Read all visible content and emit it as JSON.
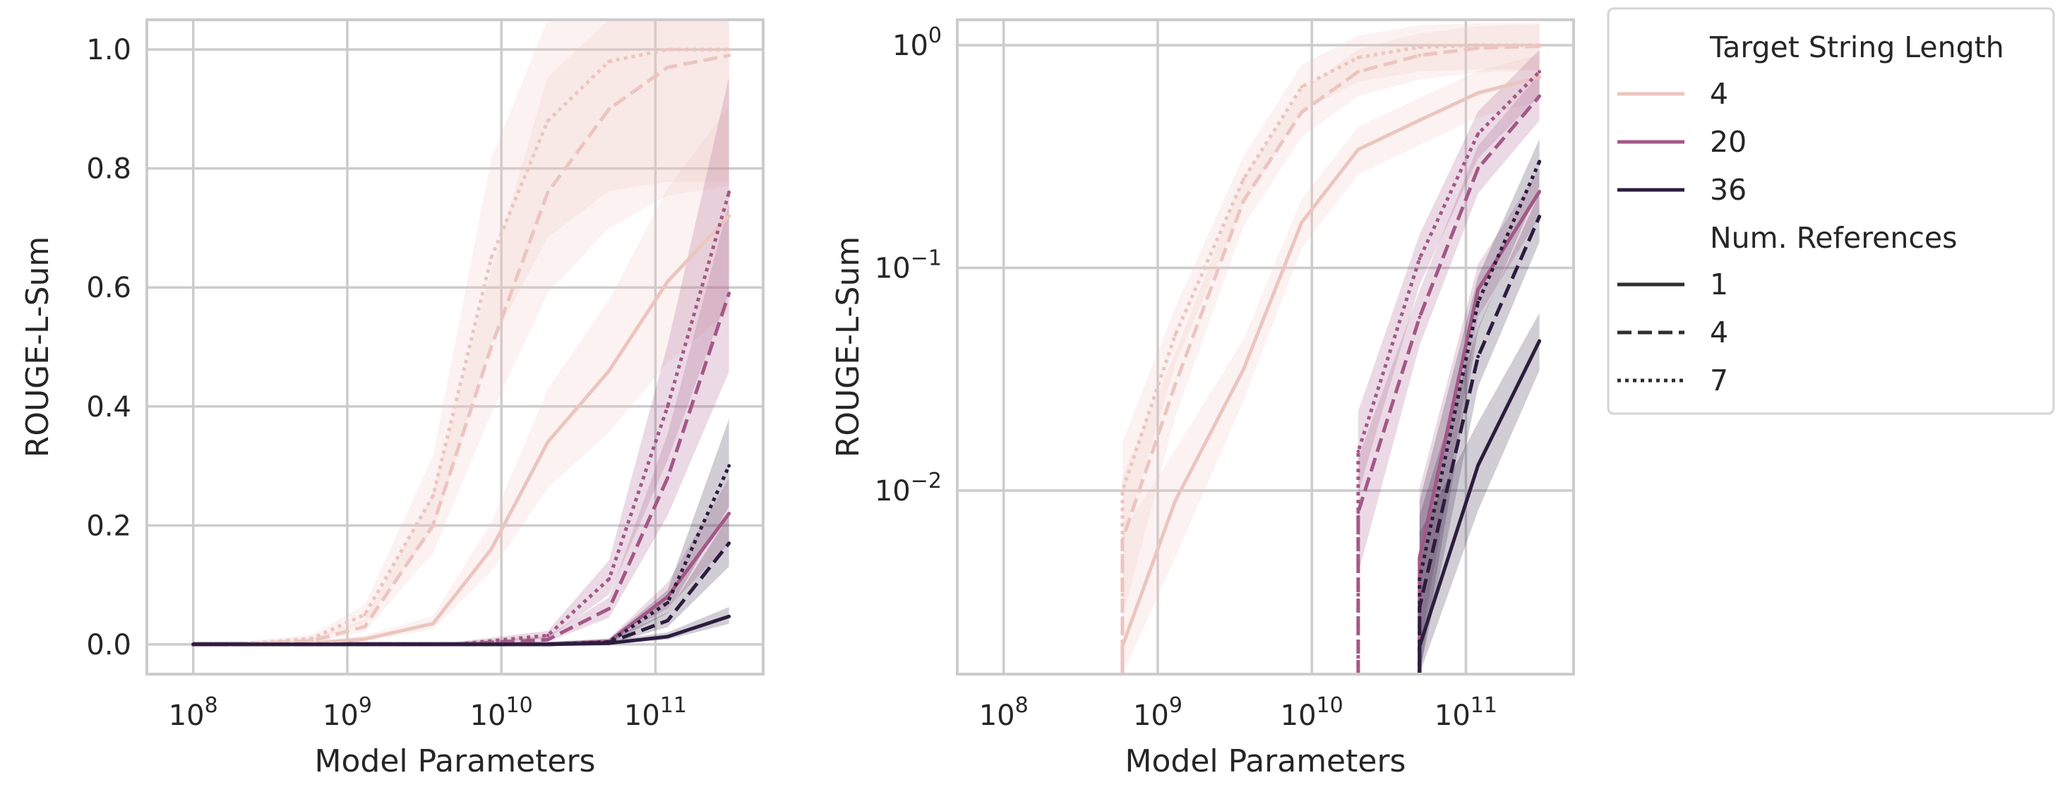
{
  "legend": {
    "hue_title": "Target String Length",
    "hue_entries": [
      {
        "label": "4",
        "color": "#ecc5bf"
      },
      {
        "label": "20",
        "color": "#a35887"
      },
      {
        "label": "36",
        "color": "#2c1d3e"
      }
    ],
    "style_title": "Num. References",
    "style_entries": [
      {
        "label": "1",
        "dash": "solid"
      },
      {
        "label": "4",
        "dash": "dashed"
      },
      {
        "label": "7",
        "dash": "dotted"
      }
    ]
  },
  "chart_data": [
    {
      "type": "line",
      "xlabel": "Model Parameters",
      "ylabel": "ROUGE-L-Sum",
      "xscale": "log",
      "yscale": "linear",
      "xlim": [
        50000000.0,
        500000000000.0
      ],
      "ylim": [
        -0.05,
        1.05
      ],
      "x_ticks": [
        {
          "base": "10",
          "exp": "8"
        },
        {
          "base": "10",
          "exp": "9"
        },
        {
          "base": "10",
          "exp": "10"
        },
        {
          "base": "10",
          "exp": "11"
        }
      ],
      "y_ticks": [
        "0.0",
        "0.2",
        "0.4",
        "0.6",
        "0.8",
        "1.0"
      ],
      "grid": true,
      "series": [
        {
          "length": "4",
          "refs": "1",
          "x": [
            100000000.0,
            200000000.0,
            590000000.0,
            1300000000.0,
            3600000000.0,
            8600000000.0,
            20000000000.0,
            50000000000.0,
            120000000000.0,
            300000000000.0
          ],
          "y": [
            0,
            0,
            0.002,
            0.009,
            0.035,
            0.16,
            0.34,
            0.46,
            0.61,
            0.72
          ]
        },
        {
          "length": "4",
          "refs": "4",
          "x": [
            100000000.0,
            200000000.0,
            590000000.0,
            1300000000.0,
            3600000000.0,
            8600000000.0,
            20000000000.0,
            50000000000.0,
            120000000000.0,
            300000000000.0
          ],
          "y": [
            0,
            0,
            0.006,
            0.03,
            0.2,
            0.5,
            0.76,
            0.9,
            0.97,
            0.99
          ]
        },
        {
          "length": "4",
          "refs": "7",
          "x": [
            100000000.0,
            200000000.0,
            590000000.0,
            1300000000.0,
            3600000000.0,
            8600000000.0,
            20000000000.0,
            50000000000.0,
            120000000000.0,
            300000000000.0
          ],
          "y": [
            0,
            0,
            0.01,
            0.05,
            0.25,
            0.65,
            0.88,
            0.98,
            1.0,
            1.0
          ]
        },
        {
          "length": "20",
          "refs": "1",
          "x": [
            100000000.0,
            5000000000.0,
            20000000000.0,
            50000000000.0,
            120000000000.0,
            300000000000.0
          ],
          "y": [
            0,
            0,
            0,
            0.005,
            0.08,
            0.22
          ]
        },
        {
          "length": "20",
          "refs": "4",
          "x": [
            100000000.0,
            5000000000.0,
            20000000000.0,
            50000000000.0,
            120000000000.0,
            300000000000.0
          ],
          "y": [
            0,
            0,
            0.008,
            0.06,
            0.28,
            0.59
          ]
        },
        {
          "length": "20",
          "refs": "7",
          "x": [
            100000000.0,
            5000000000.0,
            20000000000.0,
            50000000000.0,
            120000000000.0,
            300000000000.0
          ],
          "y": [
            0,
            0,
            0.015,
            0.11,
            0.4,
            0.76
          ]
        },
        {
          "length": "36",
          "refs": "1",
          "x": [
            100000000.0,
            20000000000.0,
            50000000000.0,
            120000000000.0,
            300000000000.0
          ],
          "y": [
            0,
            0,
            0.002,
            0.013,
            0.047
          ]
        },
        {
          "length": "36",
          "refs": "4",
          "x": [
            100000000.0,
            20000000000.0,
            50000000000.0,
            120000000000.0,
            300000000000.0
          ],
          "y": [
            0,
            0,
            0.003,
            0.04,
            0.17
          ]
        },
        {
          "length": "36",
          "refs": "7",
          "x": [
            100000000.0,
            20000000000.0,
            50000000000.0,
            120000000000.0,
            300000000000.0
          ],
          "y": [
            0,
            0,
            0.004,
            0.07,
            0.3
          ]
        }
      ]
    },
    {
      "type": "line",
      "xlabel": "Model Parameters",
      "ylabel": "ROUGE-L-Sum",
      "xscale": "log",
      "yscale": "log",
      "xlim": [
        50000000.0,
        500000000000.0
      ],
      "ylim": [
        0.0015,
        1.3
      ],
      "x_ticks": [
        {
          "base": "10",
          "exp": "8"
        },
        {
          "base": "10",
          "exp": "9"
        },
        {
          "base": "10",
          "exp": "10"
        },
        {
          "base": "10",
          "exp": "11"
        }
      ],
      "y_ticks": [
        {
          "base": "10",
          "exp": "−2"
        },
        {
          "base": "10",
          "exp": "−1"
        },
        {
          "base": "10",
          "exp": "0"
        }
      ],
      "grid": true,
      "series": [
        {
          "length": "4",
          "refs": "1",
          "x": [
            590000000.0,
            1300000000.0,
            3600000000.0,
            8600000000.0,
            20000000000.0,
            50000000000.0,
            120000000000.0,
            300000000000.0
          ],
          "y": [
            0.002,
            0.009,
            0.035,
            0.16,
            0.34,
            0.46,
            0.61,
            0.72
          ]
        },
        {
          "length": "4",
          "refs": "4",
          "x": [
            590000000.0,
            1300000000.0,
            3600000000.0,
            8600000000.0,
            20000000000.0,
            50000000000.0,
            120000000000.0,
            300000000000.0
          ],
          "y": [
            0.006,
            0.03,
            0.2,
            0.5,
            0.76,
            0.9,
            0.97,
            0.99
          ]
        },
        {
          "length": "4",
          "refs": "7",
          "x": [
            590000000.0,
            1300000000.0,
            3600000000.0,
            8600000000.0,
            20000000000.0,
            50000000000.0,
            120000000000.0,
            300000000000.0
          ],
          "y": [
            0.01,
            0.05,
            0.25,
            0.65,
            0.88,
            0.98,
            1.0,
            1.0
          ]
        },
        {
          "length": "20",
          "refs": "1",
          "x": [
            50000000000.0,
            120000000000.0,
            300000000000.0
          ],
          "y": [
            0.005,
            0.08,
            0.22
          ]
        },
        {
          "length": "20",
          "refs": "4",
          "x": [
            20000000000.0,
            50000000000.0,
            120000000000.0,
            300000000000.0
          ],
          "y": [
            0.008,
            0.06,
            0.28,
            0.59
          ]
        },
        {
          "length": "20",
          "refs": "7",
          "x": [
            20000000000.0,
            50000000000.0,
            120000000000.0,
            300000000000.0
          ],
          "y": [
            0.015,
            0.11,
            0.4,
            0.76
          ]
        },
        {
          "length": "36",
          "refs": "1",
          "x": [
            50000000000.0,
            120000000000.0,
            300000000000.0
          ],
          "y": [
            0.002,
            0.013,
            0.047
          ]
        },
        {
          "length": "36",
          "refs": "4",
          "x": [
            50000000000.0,
            120000000000.0,
            300000000000.0
          ],
          "y": [
            0.003,
            0.04,
            0.17
          ]
        },
        {
          "length": "36",
          "refs": "7",
          "x": [
            50000000000.0,
            120000000000.0,
            300000000000.0
          ],
          "y": [
            0.004,
            0.07,
            0.3
          ]
        }
      ]
    }
  ]
}
